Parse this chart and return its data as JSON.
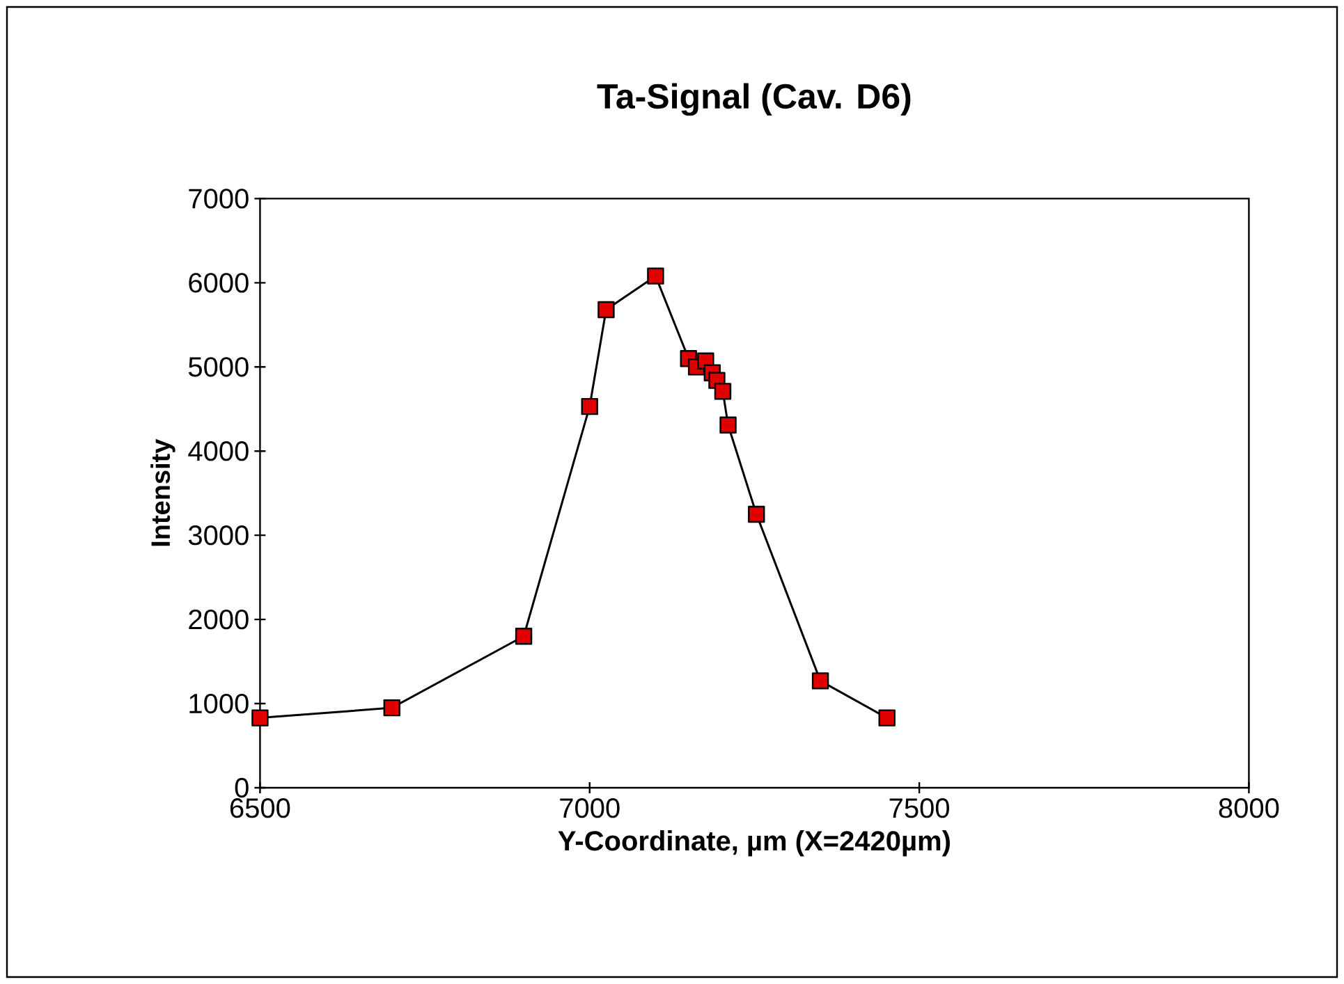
{
  "chart_data": {
    "type": "line",
    "title": "Ta-Signal (Cav. D6)",
    "xlabel": "Y-Coordinate, µm (X=2420µm)",
    "ylabel": "Intensity",
    "xlim": [
      6500,
      8000
    ],
    "xticks": [
      6500,
      7000,
      7500,
      8000
    ],
    "ylim": [
      0,
      7000
    ],
    "yticks": [
      0,
      1000,
      2000,
      3000,
      4000,
      5000,
      6000,
      7000
    ],
    "marker": "square",
    "line_style": "solid",
    "series": [
      {
        "color": "#e00000",
        "x": [
          6500,
          6700,
          6900,
          7000,
          7025,
          7100,
          7150,
          7162,
          7176,
          7186,
          7193,
          7202,
          7210,
          7253,
          7350,
          7451
        ],
        "values": [
          830,
          950,
          1800,
          4530,
          5680,
          6080,
          5100,
          5000,
          5070,
          4930,
          4840,
          4710,
          4310,
          3250,
          1270,
          830
        ]
      }
    ]
  }
}
